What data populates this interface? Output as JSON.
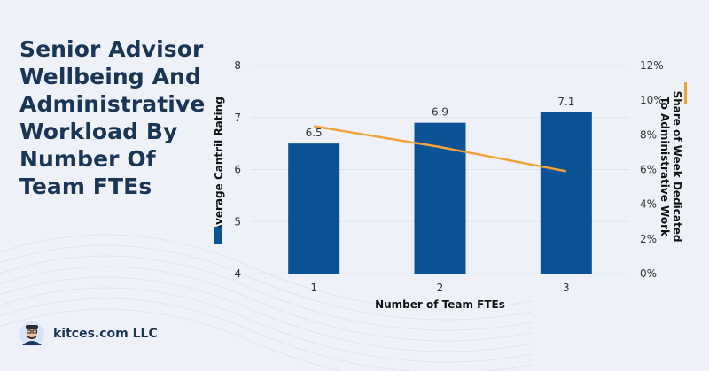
{
  "page": {
    "title": "Senior Advisor Wellbeing And Administrative Workload By Number Of Team FTEs",
    "footer": "kitces.com LLC"
  },
  "chart_data": {
    "type": "bar",
    "categories": [
      "1",
      "2",
      "3"
    ],
    "series": [
      {
        "name": "Average Cantril Rating",
        "kind": "bar",
        "axis": "left",
        "color": "#0b5394",
        "values": [
          6.5,
          6.9,
          7.1
        ],
        "labels": [
          "6.5",
          "6.9",
          "7.1"
        ]
      },
      {
        "name": "Share of Week Dedicated To Administrative Work",
        "kind": "line",
        "axis": "right",
        "color": "#f0a23a",
        "values": [
          8.5,
          7.3,
          5.9
        ]
      }
    ],
    "xlabel": "Number of Team FTEs",
    "ylabel": "Average Cantril Rating",
    "y2label": "Share of Week Dedicated To Administrative Work",
    "ylim": [
      4,
      8
    ],
    "yticks": [
      "4",
      "5",
      "6",
      "7",
      "8"
    ],
    "y2lim": [
      0,
      12
    ],
    "y2ticks": [
      "0%",
      "2%",
      "4%",
      "6%",
      "8%",
      "10%",
      "12%"
    ],
    "grid": true
  }
}
